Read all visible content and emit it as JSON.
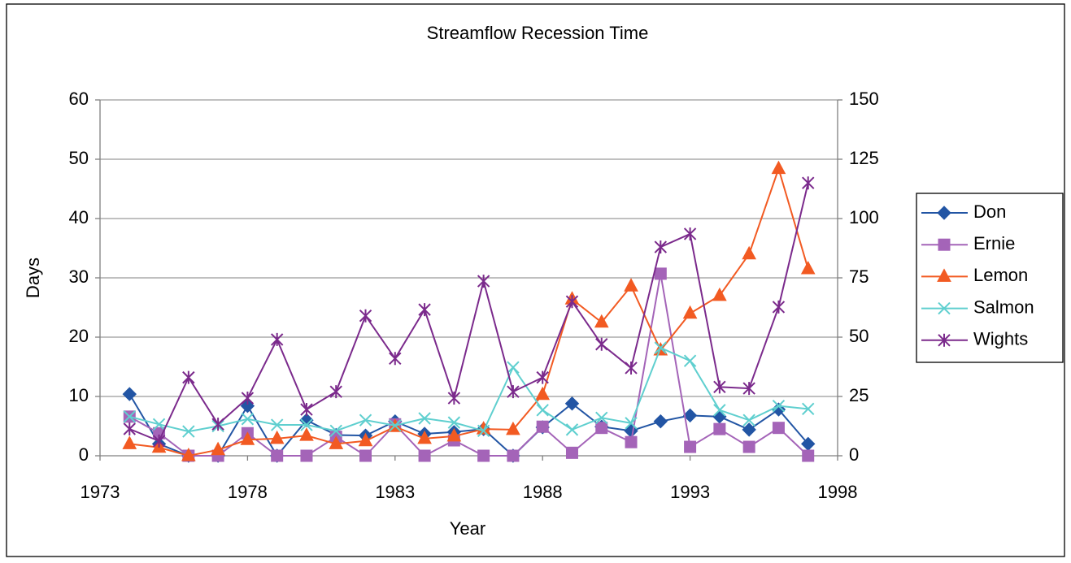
{
  "chart_data": {
    "type": "line",
    "title": "Streamflow Recession Time",
    "x_label": "Year",
    "y_label": "Days",
    "x": [
      1974,
      1975,
      1976,
      1977,
      1978,
      1979,
      1980,
      1981,
      1982,
      1983,
      1984,
      1985,
      1986,
      1987,
      1988,
      1989,
      1990,
      1991,
      1992,
      1993,
      1994,
      1995,
      1996,
      1997
    ],
    "xlim": [
      1973,
      1998
    ],
    "xticks": [
      1973,
      1978,
      1983,
      1988,
      1993,
      1998
    ],
    "ylim": [
      0,
      60
    ],
    "yticks": [
      0,
      10,
      20,
      30,
      40,
      50,
      60
    ],
    "y2lim": [
      0,
      150
    ],
    "y2ticks": [
      0,
      25,
      50,
      75,
      100,
      125,
      150
    ],
    "grid": true,
    "legend": "right",
    "series": [
      {
        "name": "Don",
        "color": "#2255a4",
        "marker": "diamond",
        "values": [
          10.4,
          2,
          0,
          0,
          8.4,
          0,
          6,
          3.5,
          3.4,
          5.8,
          3.7,
          4,
          4.5,
          0,
          4.8,
          8.8,
          4.9,
          4.2,
          5.8,
          6.8,
          6.6,
          4.4,
          7.8,
          2
        ]
      },
      {
        "name": "Ernie",
        "color": "#a464b8",
        "marker": "square",
        "values": [
          6.6,
          3.8,
          0,
          0,
          3.8,
          0,
          0,
          3.2,
          0,
          5.3,
          0,
          2.6,
          0,
          0,
          4.9,
          0.5,
          4.7,
          2.3,
          30.7,
          1.5,
          4.5,
          1.5,
          4.7,
          0
        ]
      },
      {
        "name": "Lemon",
        "color": "#f25a22",
        "marker": "triangle",
        "values": [
          2,
          1.4,
          0,
          1,
          2.7,
          2.9,
          3.4,
          2,
          2.5,
          4.9,
          2.9,
          3.3,
          4.5,
          4.4,
          10.3,
          26.4,
          22.5,
          28.6,
          17.8,
          24,
          27,
          34,
          48.4,
          31.5
        ]
      },
      {
        "name": "Salmon",
        "color": "#5fcfcf",
        "marker": "x",
        "values": [
          6.6,
          5.3,
          4.1,
          5,
          6.2,
          5.2,
          5.2,
          4.2,
          6,
          5.1,
          6.3,
          5.6,
          4.2,
          14.9,
          7.7,
          4.4,
          6.4,
          5.5,
          18.2,
          16,
          7.7,
          6,
          8.4,
          7.9
        ]
      },
      {
        "name": "Wights",
        "color": "#7b2a8c",
        "marker": "star",
        "axis": "y2",
        "values": [
          11.3,
          6.2,
          33,
          13.3,
          24.3,
          49,
          19.5,
          27,
          59,
          41,
          61.6,
          24.3,
          73.6,
          27,
          33,
          65,
          47,
          37,
          88,
          93.5,
          29,
          28.4,
          62.7,
          115
        ]
      }
    ]
  }
}
